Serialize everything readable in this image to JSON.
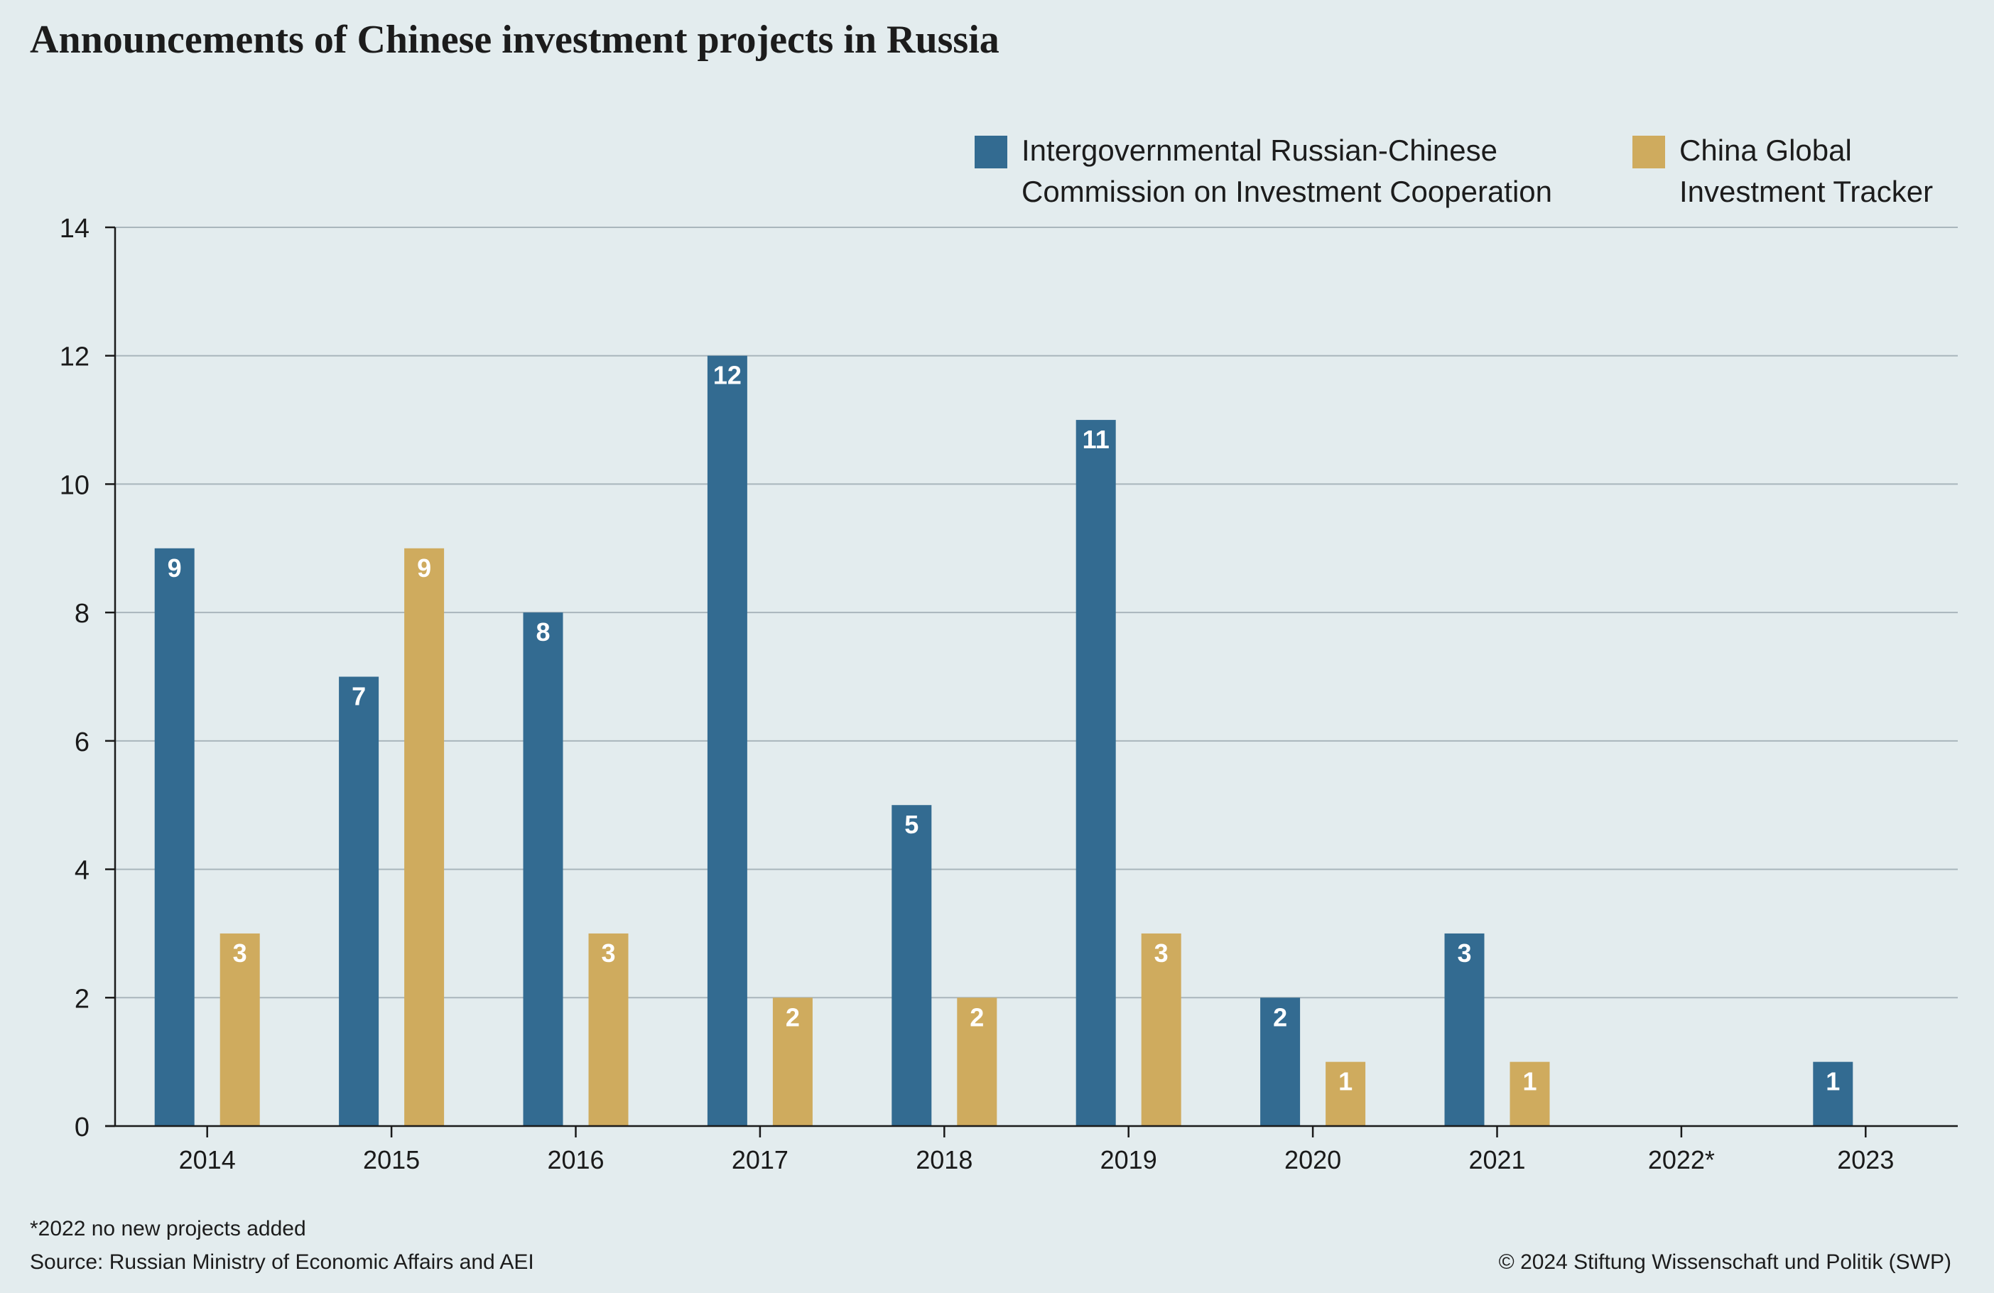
{
  "title": "Announcements of Chinese investment projects in Russia",
  "footnote": "*2022  no new projects added",
  "source": "Source: Russian Ministry of Economic Affairs and AEI",
  "copyright": "© 2024 Stiftung Wissenschaft und Politik (SWP)",
  "legend": [
    {
      "lines": [
        "Intergovernmental Russian-Chinese",
        "Commission on Investment Cooperation"
      ],
      "color": "#336b91"
    },
    {
      "lines": [
        "China Global",
        "Investment Tracker"
      ],
      "color": "#cfab5e"
    }
  ],
  "chart_data": {
    "type": "bar",
    "title": "Announcements of Chinese investment projects in Russia",
    "xlabel": "",
    "ylabel": "",
    "ylim": [
      0,
      14
    ],
    "yticks": [
      0,
      2,
      4,
      6,
      8,
      10,
      12,
      14
    ],
    "grid": true,
    "legend_position": "top-right",
    "categories": [
      "2014",
      "2015",
      "2016",
      "2017",
      "2018",
      "2019",
      "2020",
      "2021",
      "2022*",
      "2023"
    ],
    "series": [
      {
        "name": "Intergovernmental Russian-Chinese Commission on Investment Cooperation",
        "color": "#336b91",
        "values": [
          9,
          7,
          8,
          12,
          5,
          11,
          2,
          3,
          null,
          1
        ]
      },
      {
        "name": "China Global Investment Tracker",
        "color": "#cfab5e",
        "values": [
          3,
          9,
          3,
          2,
          2,
          3,
          1,
          1,
          null,
          null
        ]
      }
    ]
  }
}
